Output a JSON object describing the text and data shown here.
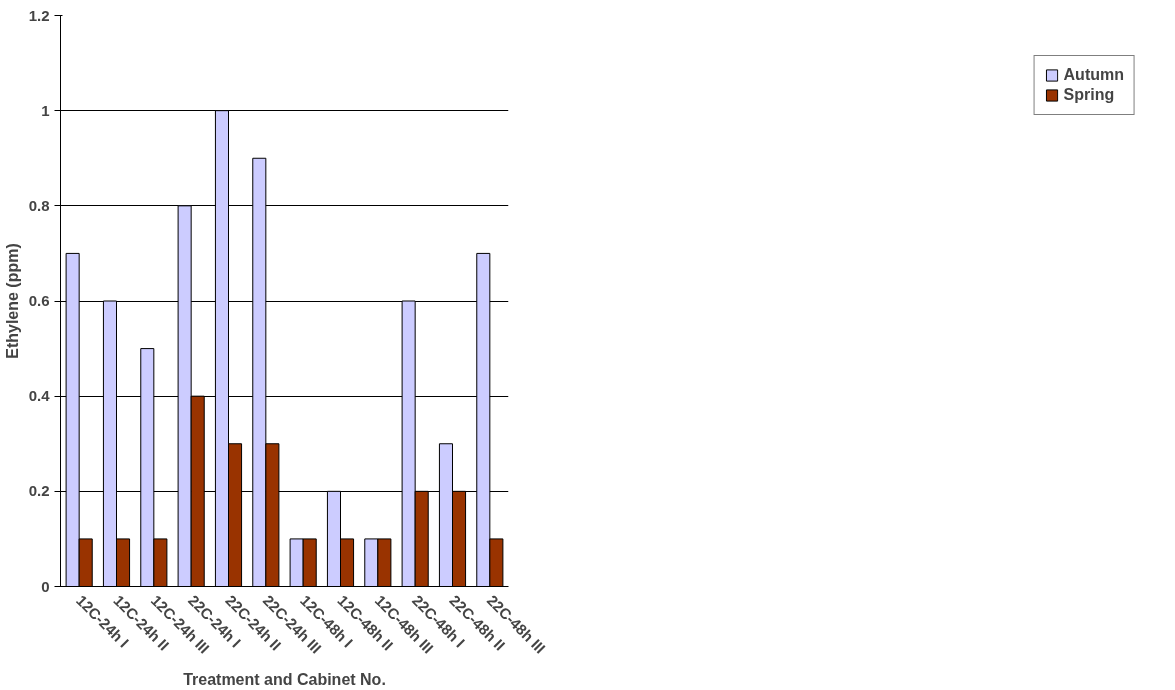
{
  "chart_data": {
    "type": "bar",
    "xlabel": "Treatment and Cabinet No.",
    "ylabel": "Ethylene (ppm)",
    "categories": [
      "12C-24h I",
      "12C-24h II",
      "12C-24h III",
      "22C-24h I",
      "22C-24h II",
      "22C-24h III",
      "12C-48h I",
      "12C-48h II",
      "12C-48h III",
      "22C-48h I",
      "22C-48h II",
      "22C-48h III"
    ],
    "series": [
      {
        "name": "Autumn",
        "color": "#ccccff",
        "values": [
          0.7,
          0.6,
          0.5,
          0.8,
          1.0,
          0.9,
          0.1,
          0.2,
          0.1,
          0.6,
          0.3,
          0.7
        ]
      },
      {
        "name": "Spring",
        "color": "#993300",
        "values": [
          0.1,
          0.1,
          0.1,
          0.4,
          0.3,
          0.3,
          0.1,
          0.1,
          0.1,
          0.2,
          0.2,
          0.1
        ]
      }
    ],
    "ylim": [
      0,
      1.2
    ],
    "yticks": [
      0,
      0.2,
      0.4,
      0.6,
      0.8,
      1,
      1.2
    ],
    "grid": "y",
    "legend": "right"
  }
}
